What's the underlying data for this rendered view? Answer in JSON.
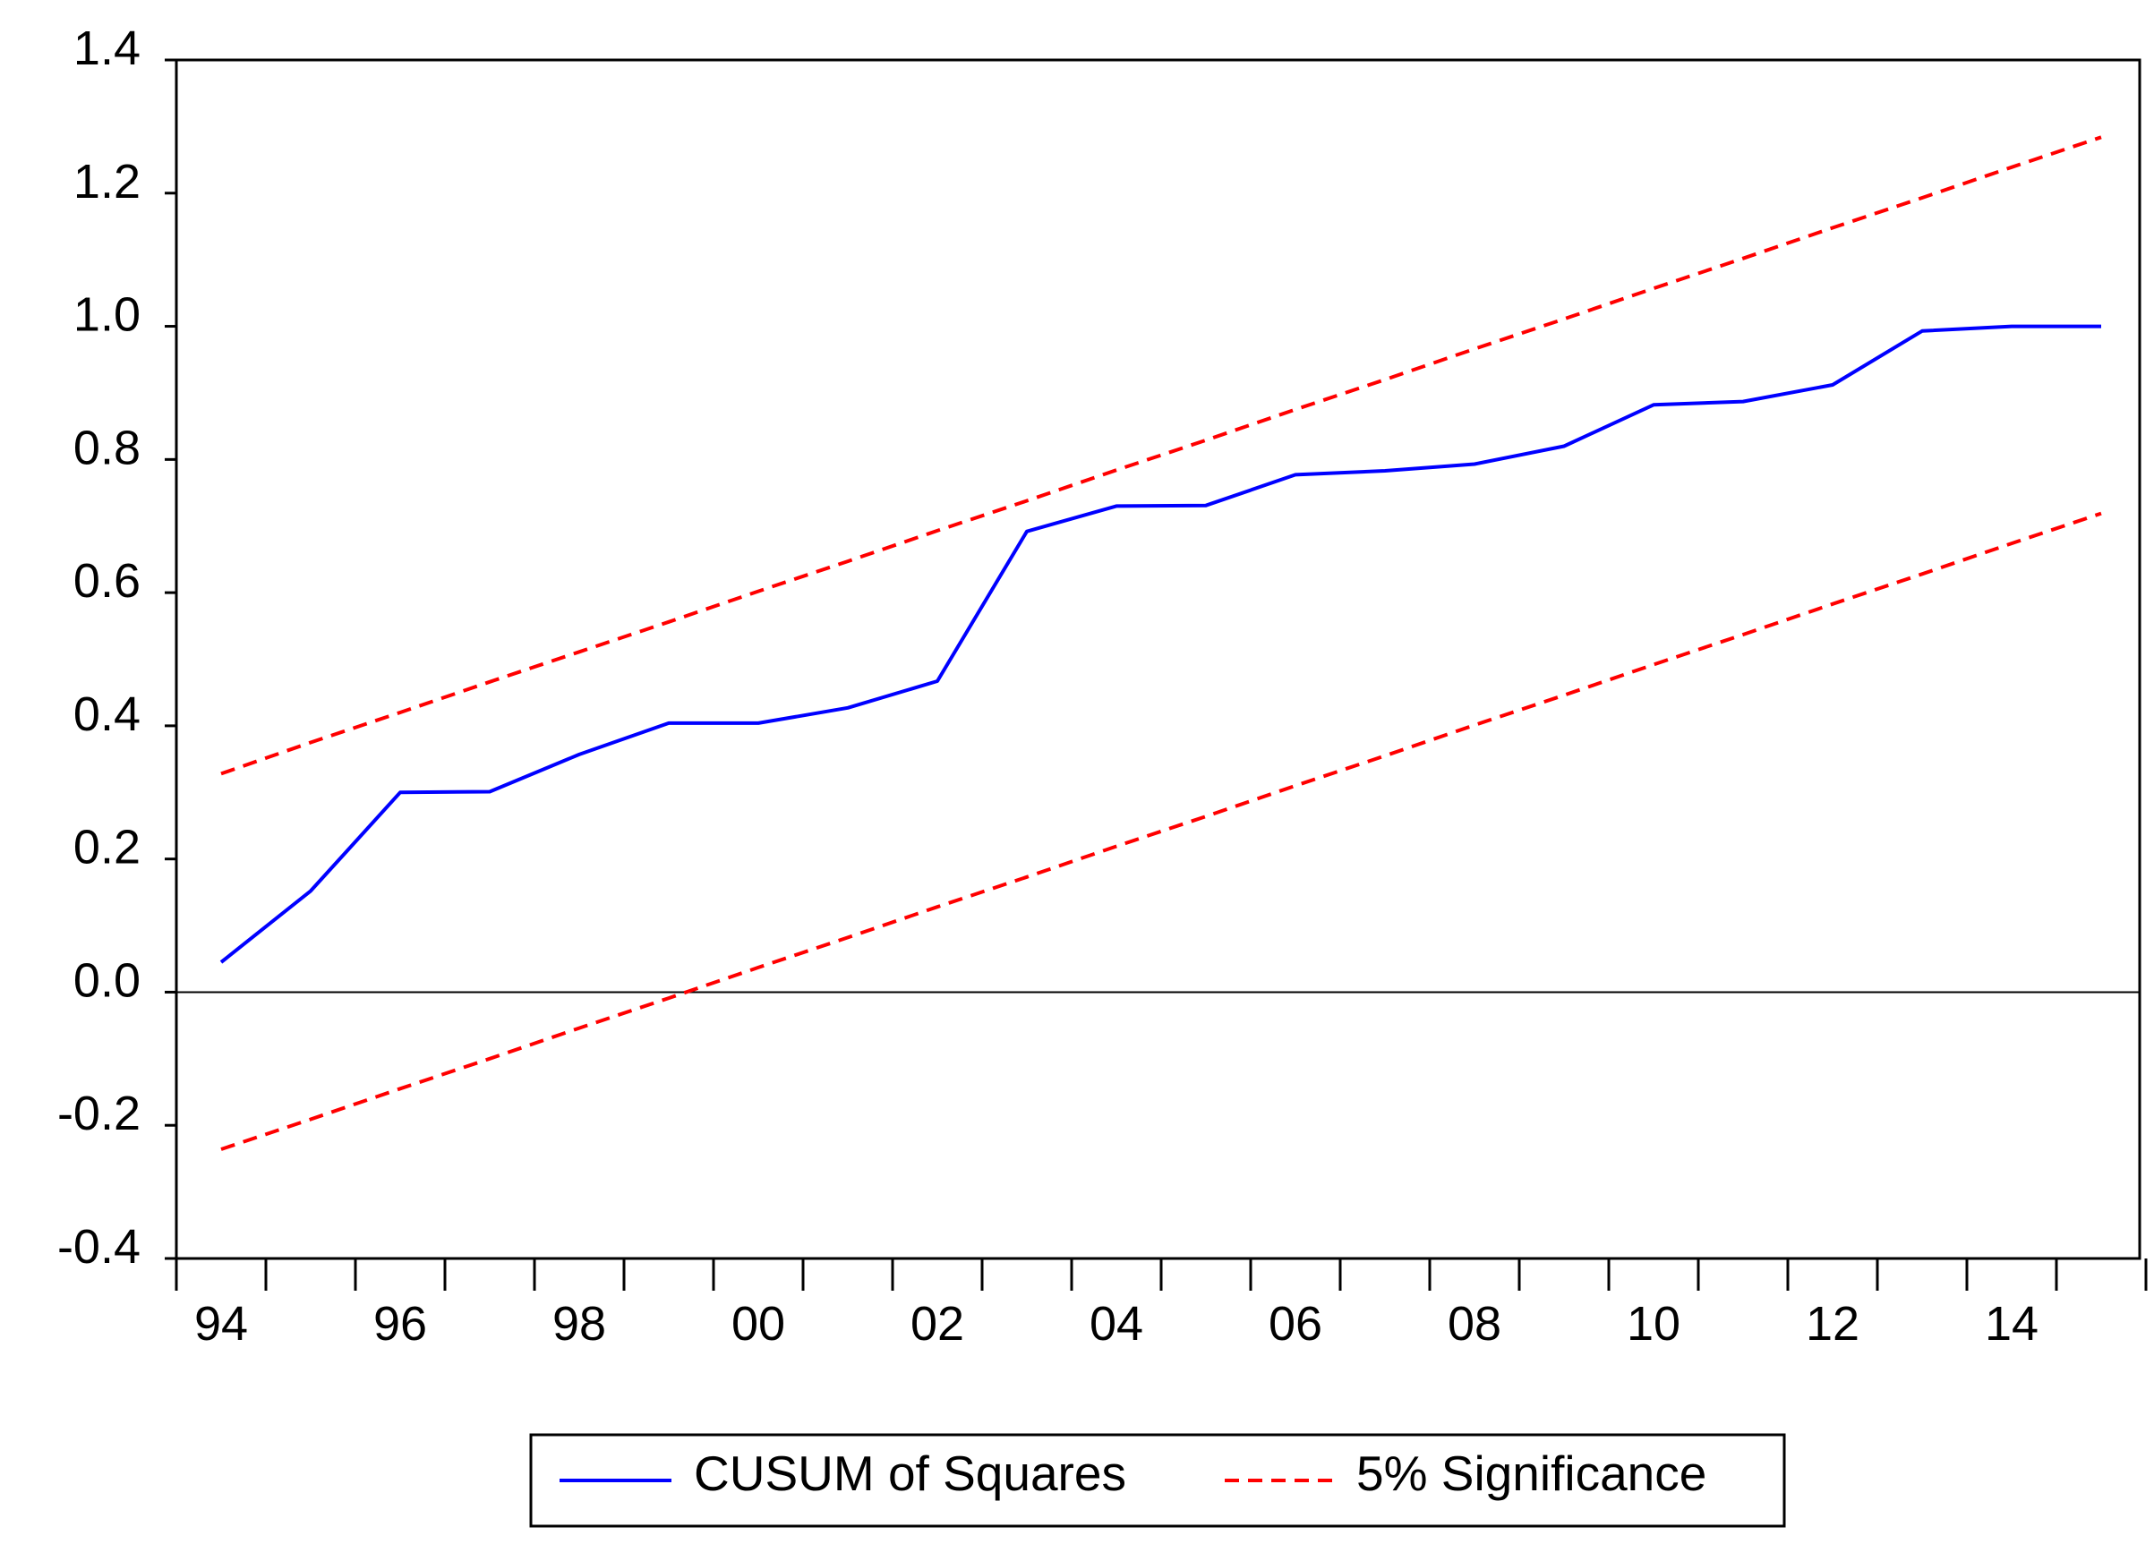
{
  "chart_data": {
    "type": "line",
    "x": [
      1994,
      1995,
      1996,
      1997,
      1998,
      1999,
      2000,
      2001,
      2002,
      2003,
      2004,
      2005,
      2006,
      2007,
      2008,
      2009,
      2010,
      2011,
      2012,
      2013,
      2014,
      2015
    ],
    "series": [
      {
        "name": "CUSUM of Squares",
        "style": "solid",
        "color": "#0000ff",
        "values": [
          0.045,
          0.152,
          0.3,
          0.301,
          0.357,
          0.404,
          0.404,
          0.427,
          0.467,
          0.692,
          0.73,
          0.731,
          0.777,
          0.783,
          0.793,
          0.82,
          0.882,
          0.887,
          0.912,
          0.993,
          1.0,
          1.0
        ]
      },
      {
        "name": "5% Significance",
        "style": "dashed",
        "color": "#ff0000",
        "values": [
          0.328,
          0.375,
          0.42,
          0.466,
          0.511,
          0.556,
          0.602,
          0.647,
          0.693,
          0.738,
          0.784,
          0.829,
          0.875,
          0.92,
          0.966,
          1.011,
          1.057,
          1.102,
          1.148,
          1.193,
          1.239,
          1.284
        ]
      },
      {
        "name": "5% Significance",
        "style": "dashed",
        "color": "#ff0000",
        "values": [
          -0.236,
          -0.191,
          -0.145,
          -0.1,
          -0.054,
          -0.009,
          0.037,
          0.082,
          0.128,
          0.173,
          0.219,
          0.264,
          0.31,
          0.355,
          0.401,
          0.446,
          0.492,
          0.537,
          0.583,
          0.628,
          0.674,
          0.719
        ]
      }
    ],
    "zero_line": 0.0,
    "ylim": [
      -0.4,
      1.4
    ],
    "yticks": [
      "1.4",
      "1.2",
      "1.0",
      "0.8",
      "0.6",
      "0.4",
      "0.2",
      "0.0",
      "-0.2",
      "-0.4"
    ],
    "xticklabels": [
      "94",
      "96",
      "98",
      "00",
      "02",
      "04",
      "06",
      "08",
      "10",
      "12",
      "14"
    ],
    "legend": {
      "position": "bottom-center",
      "items": [
        {
          "label": "CUSUM of Squares",
          "color": "#0000ff",
          "style": "solid"
        },
        {
          "label": "5% Significance",
          "color": "#ff0000",
          "style": "dashed"
        }
      ]
    },
    "grid": false
  }
}
